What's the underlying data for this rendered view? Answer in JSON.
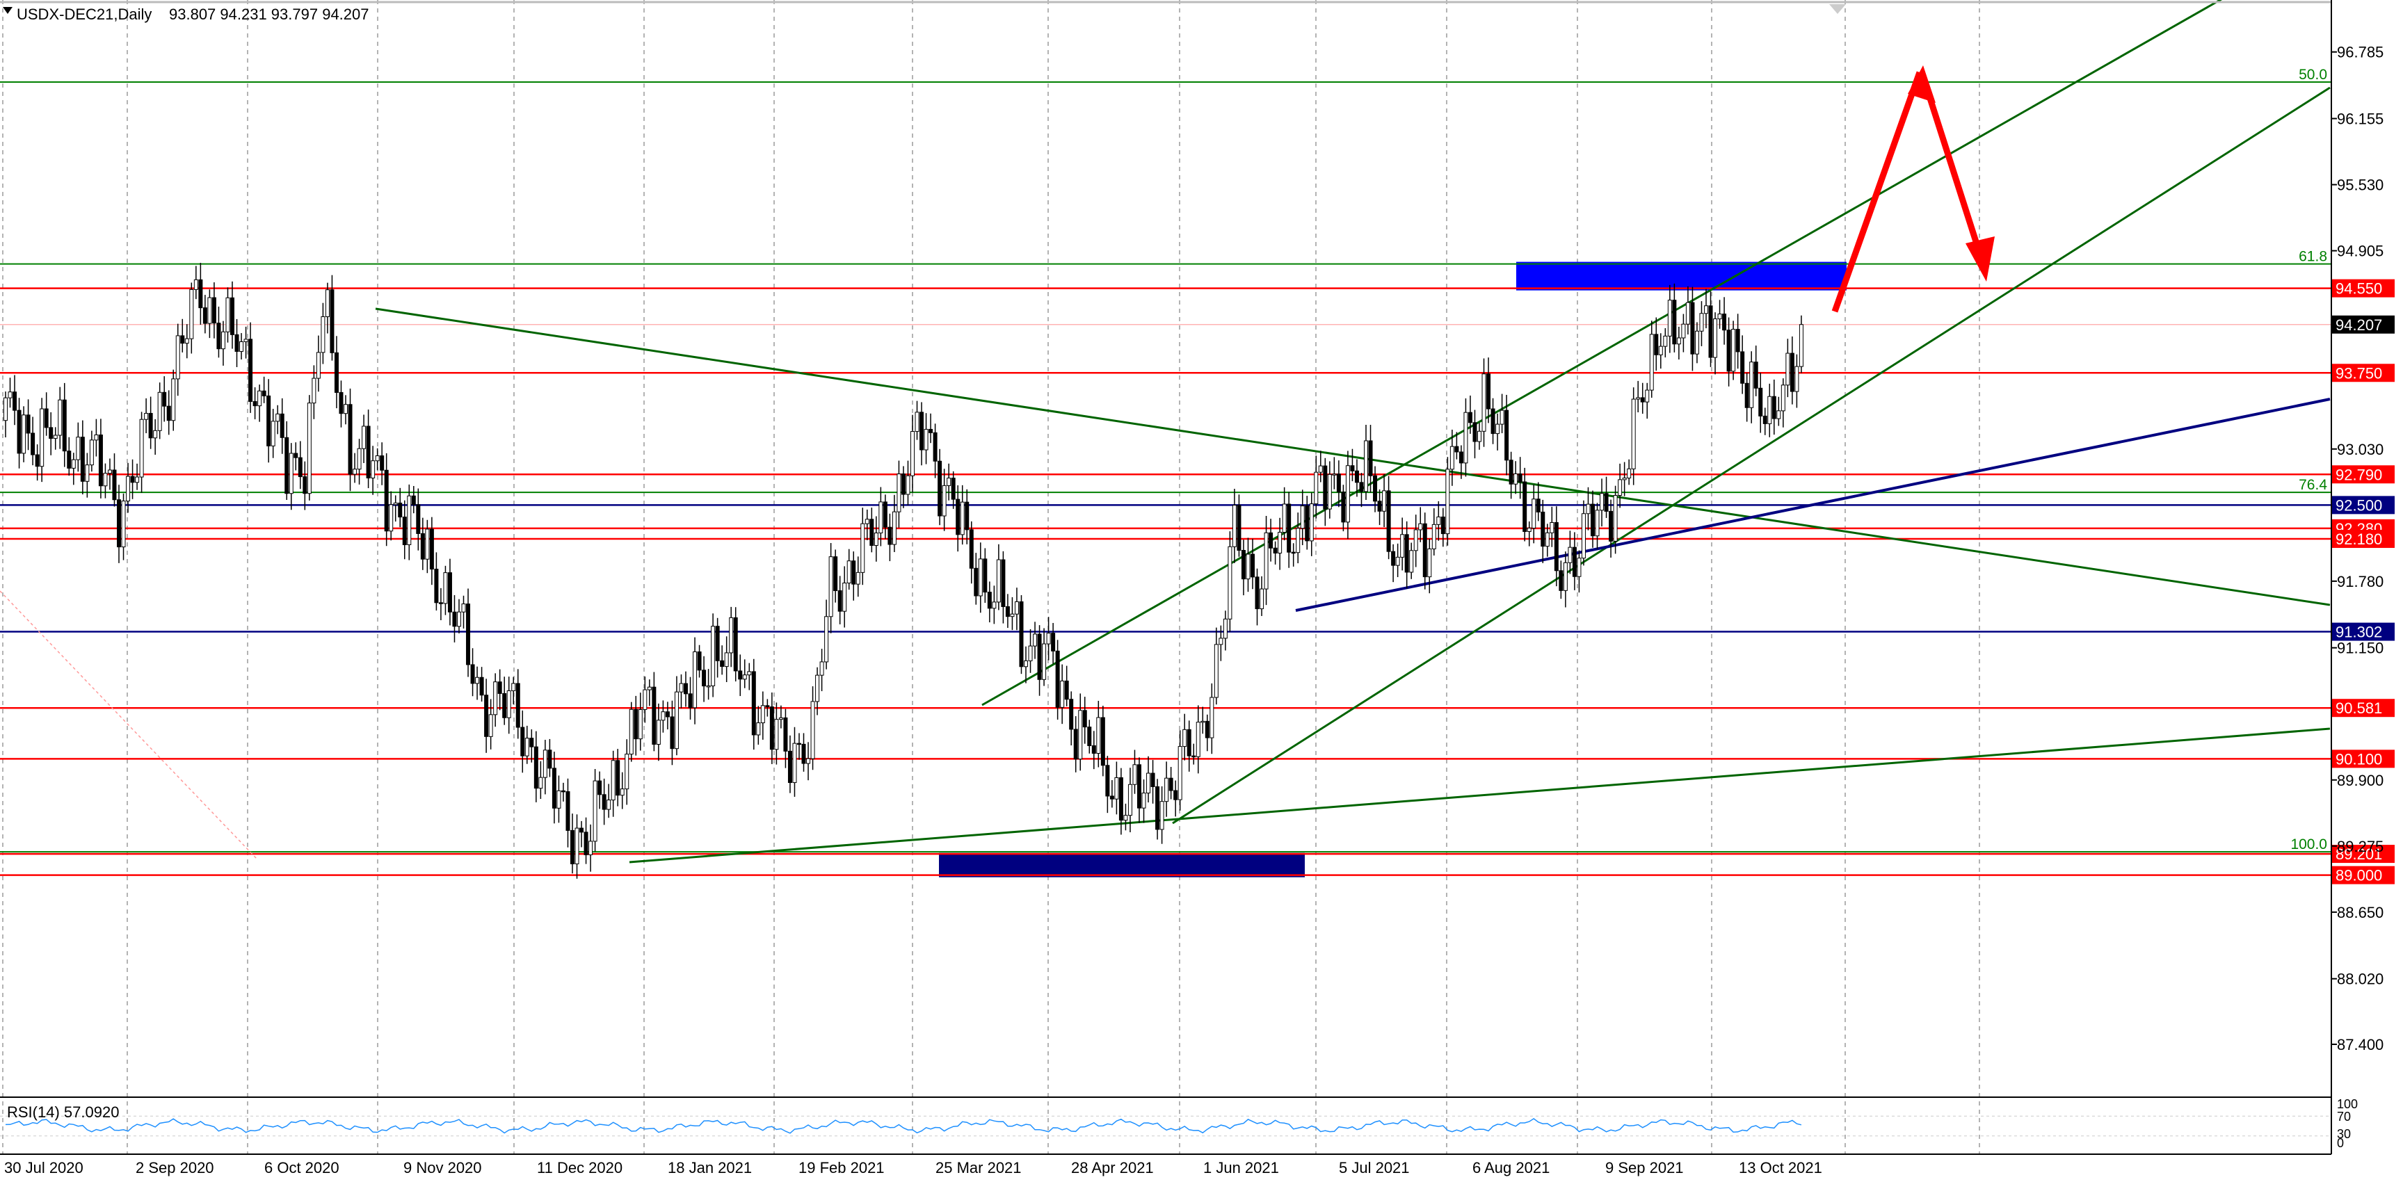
{
  "header": {
    "symbol_timeframe": "USDX-DEC21,Daily",
    "ohlc": "93.807 94.231 93.797 94.207"
  },
  "rsi_panel": {
    "label": "RSI(14) 57.0920",
    "levels": [
      "100",
      "70",
      "30",
      "0"
    ]
  },
  "colors": {
    "grid": "#9a9a9a",
    "candle": "#000000",
    "support_resistance": "#ff0000",
    "fib": "#008000",
    "blue_line": "#000080",
    "trend": "#006400",
    "zone_bright": "#0000ff",
    "zone_dark": "#000080",
    "arrow": "#ff0000",
    "rsi": "#1e90ff",
    "price_tag_current": "#000000"
  },
  "chart_data": {
    "type": "candlestick",
    "symbol": "USDX-DEC21",
    "timeframe": "Daily",
    "x_labels": [
      "30 Jul 2020",
      "2 Sep 2020",
      "6 Oct 2020",
      "9 Nov 2020",
      "11 Dec 2020",
      "18 Jan 2021",
      "19 Feb 2021",
      "25 Mar 2021",
      "28 Apr 2021",
      "1 Jun 2021",
      "5 Jul 2021",
      "6 Aug 2021",
      "9 Sep 2021",
      "13 Oct 2021"
    ],
    "y_ticks": [
      "96.785",
      "96.155",
      "95.530",
      "94.905",
      "93.030",
      "91.780",
      "91.150",
      "89.900",
      "89.275",
      "88.650",
      "88.020",
      "87.400"
    ],
    "ylim": [
      86.9,
      97.25
    ],
    "price_levels": [
      {
        "label": "94.550",
        "value": 94.55,
        "color": "#ff0000"
      },
      {
        "label": "94.207",
        "value": 94.207,
        "color": "#000000"
      },
      {
        "label": "93.750",
        "value": 93.75,
        "color": "#ff0000"
      },
      {
        "label": "92.790",
        "value": 92.79,
        "color": "#ff0000"
      },
      {
        "label": "92.500",
        "value": 92.5,
        "color": "#000080"
      },
      {
        "label": "92.280",
        "value": 92.28,
        "color": "#ff0000"
      },
      {
        "label": "92.180",
        "value": 92.18,
        "color": "#ff0000"
      },
      {
        "label": "91.302",
        "value": 91.302,
        "color": "#000080"
      },
      {
        "label": "90.581",
        "value": 90.581,
        "color": "#ff0000"
      },
      {
        "label": "90.100",
        "value": 90.1,
        "color": "#ff0000"
      },
      {
        "label": "89.201",
        "value": 89.201,
        "color": "#ff0000"
      },
      {
        "label": "89.000",
        "value": 89.0,
        "color": "#ff0000"
      }
    ],
    "fib_levels": [
      {
        "label": "50.0",
        "value": 96.5
      },
      {
        "label": "61.8",
        "value": 94.78
      },
      {
        "label": "76.4",
        "value": 92.62
      },
      {
        "label": "100.0",
        "value": 89.22
      }
    ],
    "price_path": [
      [
        0,
        93.3
      ],
      [
        18,
        93.0
      ],
      [
        25,
        92.5
      ],
      [
        33,
        93.3
      ],
      [
        43,
        94.5
      ],
      [
        48,
        94.2
      ],
      [
        56,
        93.6
      ],
      [
        62,
        92.8
      ],
      [
        66,
        93.0
      ],
      [
        70,
        94.3
      ],
      [
        76,
        93.1
      ],
      [
        88,
        92.4
      ],
      [
        96,
        91.8
      ],
      [
        105,
        90.7
      ],
      [
        113,
        90.5
      ],
      [
        120,
        89.8
      ],
      [
        128,
        89.3
      ],
      [
        132,
        89.7
      ],
      [
        140,
        90.5
      ],
      [
        150,
        90.6
      ],
      [
        156,
        91.2
      ],
      [
        164,
        90.8
      ],
      [
        172,
        90.1
      ],
      [
        178,
        90.4
      ],
      [
        182,
        91.7
      ],
      [
        190,
        92.1
      ],
      [
        198,
        92.7
      ],
      [
        203,
        93.3
      ],
      [
        206,
        92.8
      ],
      [
        212,
        92.1
      ],
      [
        220,
        91.5
      ],
      [
        230,
        91.0
      ],
      [
        238,
        90.3
      ],
      [
        245,
        89.8
      ],
      [
        250,
        89.7
      ],
      [
        258,
        89.9
      ],
      [
        263,
        90.3
      ],
      [
        268,
        91.2
      ],
      [
        271,
        92.2
      ],
      [
        276,
        91.8
      ],
      [
        282,
        92.2
      ],
      [
        290,
        92.6
      ],
      [
        296,
        92.8
      ],
      [
        303,
        92.6
      ],
      [
        308,
        91.9
      ],
      [
        314,
        92.2
      ],
      [
        320,
        92.9
      ],
      [
        326,
        93.6
      ],
      [
        330,
        93.0
      ],
      [
        336,
        92.5
      ],
      [
        342,
        91.9
      ],
      [
        346,
        92.1
      ],
      [
        352,
        92.4
      ],
      [
        356,
        92.7
      ],
      [
        360,
        93.3
      ],
      [
        365,
        94.3
      ],
      [
        370,
        94.0
      ],
      [
        375,
        94.4
      ],
      [
        380,
        93.9
      ],
      [
        386,
        93.7
      ],
      [
        389,
        93.1
      ],
      [
        392,
        93.6
      ],
      [
        396,
        94.207
      ]
    ],
    "rsi": {
      "period": 14,
      "last": 57.092,
      "levels": [
        70,
        30
      ]
    }
  }
}
